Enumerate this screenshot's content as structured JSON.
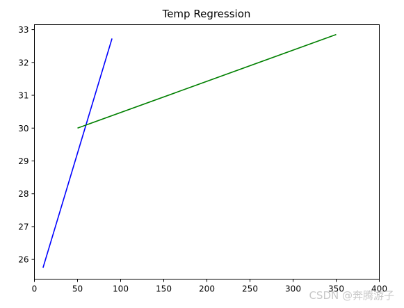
{
  "chart_data": {
    "type": "line",
    "title": "Temp Regression",
    "xlabel": "",
    "ylabel": "",
    "xlim": [
      0,
      400
    ],
    "ylim": [
      25.4,
      33.15
    ],
    "x_ticks": [
      0,
      50,
      100,
      150,
      200,
      250,
      300,
      350,
      400
    ],
    "y_ticks": [
      26,
      27,
      28,
      29,
      30,
      31,
      32,
      33
    ],
    "grid": false,
    "legend": "none",
    "series": [
      {
        "color": "#0000ff",
        "x": [
          10,
          90
        ],
        "y": [
          25.75,
          32.73
        ]
      },
      {
        "color": "#008000",
        "x": [
          50,
          350
        ],
        "y": [
          30.0,
          32.85
        ]
      }
    ]
  },
  "watermark": "CSDN @奔腾游子"
}
